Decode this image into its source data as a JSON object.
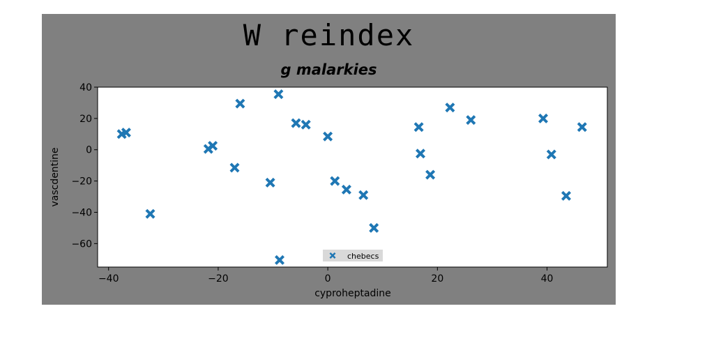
{
  "chart_data": {
    "type": "scatter",
    "suptitle": "W reindex",
    "title": "g malarkies",
    "xlabel": "cyproheptadine",
    "ylabel": "vascdentine",
    "xlim": [
      -42,
      51
    ],
    "ylim": [
      -75,
      40
    ],
    "xticks": [
      -40,
      -20,
      0,
      20,
      40
    ],
    "yticks": [
      40,
      20,
      0,
      -20,
      -40,
      -60
    ],
    "xtick_labels": [
      "−40",
      "−20",
      "0",
      "20",
      "40"
    ],
    "ytick_labels": [
      "40",
      "20",
      "0",
      "−20",
      "−40",
      "−60"
    ],
    "grid": false,
    "legend_position": "lower-center",
    "marker": "X",
    "colors": {
      "series": "#1f77b4",
      "figure_bg": "#808080",
      "axes_bg": "#ffffff",
      "legend_bg": "#d9d9d9"
    },
    "series": [
      {
        "name": "chebecs",
        "points": [
          {
            "x": -37.6,
            "y": 10
          },
          {
            "x": -36.8,
            "y": 11
          },
          {
            "x": -32.4,
            "y": -41
          },
          {
            "x": -21.8,
            "y": 0.5
          },
          {
            "x": -21.0,
            "y": 2.5
          },
          {
            "x": -17.0,
            "y": -11.5
          },
          {
            "x": -16.0,
            "y": 29.5
          },
          {
            "x": -10.5,
            "y": -21
          },
          {
            "x": -9.0,
            "y": 35.5
          },
          {
            "x": -8.8,
            "y": -70.5
          },
          {
            "x": -5.8,
            "y": 17
          },
          {
            "x": -4.0,
            "y": 16
          },
          {
            "x": 0.0,
            "y": 8.5
          },
          {
            "x": 1.3,
            "y": -20
          },
          {
            "x": 3.4,
            "y": -25.5
          },
          {
            "x": 6.5,
            "y": -29
          },
          {
            "x": 8.4,
            "y": -50
          },
          {
            "x": 16.6,
            "y": 14.5
          },
          {
            "x": 16.9,
            "y": -2.5
          },
          {
            "x": 18.7,
            "y": -16
          },
          {
            "x": 22.3,
            "y": 27
          },
          {
            "x": 26.1,
            "y": 19
          },
          {
            "x": 39.3,
            "y": 20
          },
          {
            "x": 40.8,
            "y": -3
          },
          {
            "x": 43.5,
            "y": -29.5
          },
          {
            "x": 46.4,
            "y": 14.5
          }
        ]
      }
    ]
  }
}
